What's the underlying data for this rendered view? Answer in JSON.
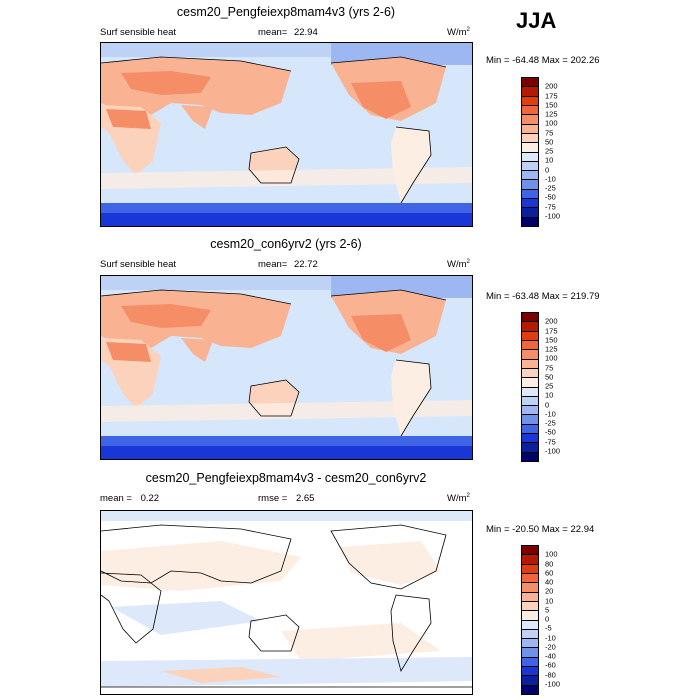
{
  "season": "JJA",
  "panels": [
    {
      "title": "cesm20_Pengfeiexp8mam4v3 (yrs 2-6)",
      "left_label": "Surf sensible heat",
      "mean_label": "mean=",
      "mean_value": "22.94",
      "units": "W/m",
      "units_sup": "2",
      "minmax": "Min = -64.48 Max = 202.26",
      "colorbar_ticks": [
        "200",
        "175",
        "150",
        "125",
        "100",
        "75",
        "50",
        "25",
        "10",
        "0",
        "-10",
        "-25",
        "-50",
        "-75",
        "-100"
      ]
    },
    {
      "title": "cesm20_con6yrv2 (yrs 2-6)",
      "left_label": "Surf sensible heat",
      "mean_label": "mean=",
      "mean_value": "22.72",
      "units": "W/m",
      "units_sup": "2",
      "minmax": "Min = -63.48 Max = 219.79",
      "colorbar_ticks": [
        "200",
        "175",
        "150",
        "125",
        "100",
        "75",
        "50",
        "25",
        "10",
        "0",
        "-10",
        "-25",
        "-50",
        "-75",
        "-100"
      ]
    },
    {
      "title": "cesm20_Pengfeiexp8mam4v3 - cesm20_con6yrv2",
      "left_label": "mean =",
      "left_value": "0.22",
      "mean_label": "rmse =",
      "mean_value": "2.65",
      "units": "W/m",
      "units_sup": "2",
      "minmax": "Min = -20.50 Max = 22.94",
      "colorbar_ticks": [
        "100",
        "80",
        "60",
        "40",
        "20",
        "10",
        "5",
        "0",
        "-5",
        "-10",
        "-20",
        "-40",
        "-60",
        "-80",
        "-100"
      ]
    }
  ],
  "colors": {
    "scale": [
      "#7a0000",
      "#b31a00",
      "#e03e0f",
      "#f0663a",
      "#f58d66",
      "#f9b393",
      "#fbd3bd",
      "#fdeee3",
      "#dde8fb",
      "#bed2f6",
      "#9cb7f1",
      "#6f90eb",
      "#3f64e6",
      "#1936d6",
      "#0c1f9c",
      "#00006a"
    ],
    "ocean_base": "#d6e6fb",
    "ocean_diff": "#ffffff",
    "land_outline": "#000000"
  }
}
